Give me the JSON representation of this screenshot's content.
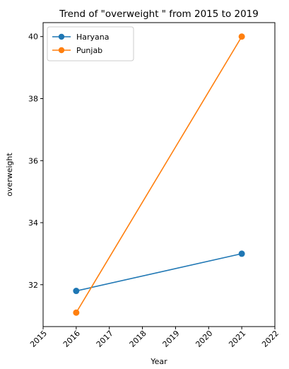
{
  "chart_data": {
    "type": "line",
    "title": "Trend of \"overweight \" from 2015 to 2019",
    "xlabel": "Year",
    "ylabel": "overweight",
    "xlim": [
      2015,
      2022
    ],
    "ylim": [
      30.65,
      40.45
    ],
    "x_ticks": [
      2015,
      2016,
      2017,
      2018,
      2019,
      2020,
      2021,
      2022
    ],
    "y_ticks": [
      32,
      34,
      36,
      38,
      40
    ],
    "grid": false,
    "legend_position": "top-left",
    "series": [
      {
        "name": "Haryana",
        "color": "#1f77b4",
        "x": [
          2016,
          2021
        ],
        "y": [
          31.8,
          33.0
        ]
      },
      {
        "name": "Punjab",
        "color": "#ff7f0e",
        "x": [
          2016,
          2021
        ],
        "y": [
          31.1,
          40.0
        ]
      }
    ]
  }
}
